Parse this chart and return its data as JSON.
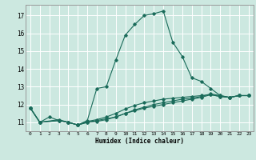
{
  "xlabel": "Humidex (Indice chaleur)",
  "bg_color": "#cce8e0",
  "grid_color": "#ffffff",
  "line_color": "#1a6b5a",
  "xlim": [
    -0.5,
    23.5
  ],
  "ylim": [
    10.5,
    17.6
  ],
  "xticks": [
    0,
    1,
    2,
    3,
    4,
    5,
    6,
    7,
    8,
    9,
    10,
    11,
    12,
    13,
    14,
    15,
    16,
    17,
    18,
    19,
    20,
    21,
    22,
    23
  ],
  "yticks": [
    11,
    12,
    13,
    14,
    15,
    16,
    17
  ],
  "lines": [
    {
      "x": [
        0,
        1,
        2,
        3,
        4,
        5,
        6,
        7,
        8,
        9,
        10,
        11,
        12,
        13,
        14,
        15,
        16,
        17,
        18,
        19,
        20,
        21,
        22,
        23
      ],
      "y": [
        11.8,
        11.0,
        11.3,
        11.1,
        11.0,
        10.85,
        11.1,
        12.9,
        13.0,
        14.5,
        15.9,
        16.5,
        17.0,
        17.1,
        17.25,
        15.5,
        14.7,
        13.5,
        13.3,
        12.9,
        12.5,
        12.4,
        12.5,
        12.5
      ]
    },
    {
      "x": [
        0,
        1,
        3,
        4,
        5,
        6,
        7,
        8,
        9,
        10,
        11,
        12,
        13,
        14,
        15,
        16,
        17,
        18,
        19,
        20,
        21,
        22,
        23
      ],
      "y": [
        11.8,
        11.0,
        11.1,
        11.0,
        10.85,
        11.0,
        11.1,
        11.2,
        11.3,
        11.5,
        11.65,
        11.8,
        11.9,
        12.0,
        12.1,
        12.2,
        12.3,
        12.4,
        12.55,
        12.45,
        12.4,
        12.5,
        12.5
      ]
    },
    {
      "x": [
        0,
        1,
        3,
        4,
        5,
        6,
        7,
        8,
        9,
        10,
        11,
        12,
        13,
        14,
        15,
        16,
        17,
        18,
        19,
        20,
        21,
        22,
        23
      ],
      "y": [
        11.8,
        11.0,
        11.1,
        11.0,
        10.85,
        11.0,
        11.05,
        11.15,
        11.3,
        11.5,
        11.7,
        11.85,
        12.0,
        12.1,
        12.2,
        12.3,
        12.35,
        12.45,
        12.6,
        12.5,
        12.4,
        12.5,
        12.5
      ]
    },
    {
      "x": [
        0,
        1,
        3,
        4,
        5,
        6,
        7,
        8,
        9,
        10,
        11,
        12,
        13,
        14,
        15,
        16,
        17,
        18,
        19,
        20,
        21,
        22,
        23
      ],
      "y": [
        11.8,
        11.0,
        11.15,
        11.0,
        10.85,
        11.05,
        11.15,
        11.3,
        11.5,
        11.75,
        11.95,
        12.1,
        12.2,
        12.3,
        12.35,
        12.4,
        12.45,
        12.5,
        12.55,
        12.45,
        12.4,
        12.5,
        12.5
      ]
    }
  ]
}
